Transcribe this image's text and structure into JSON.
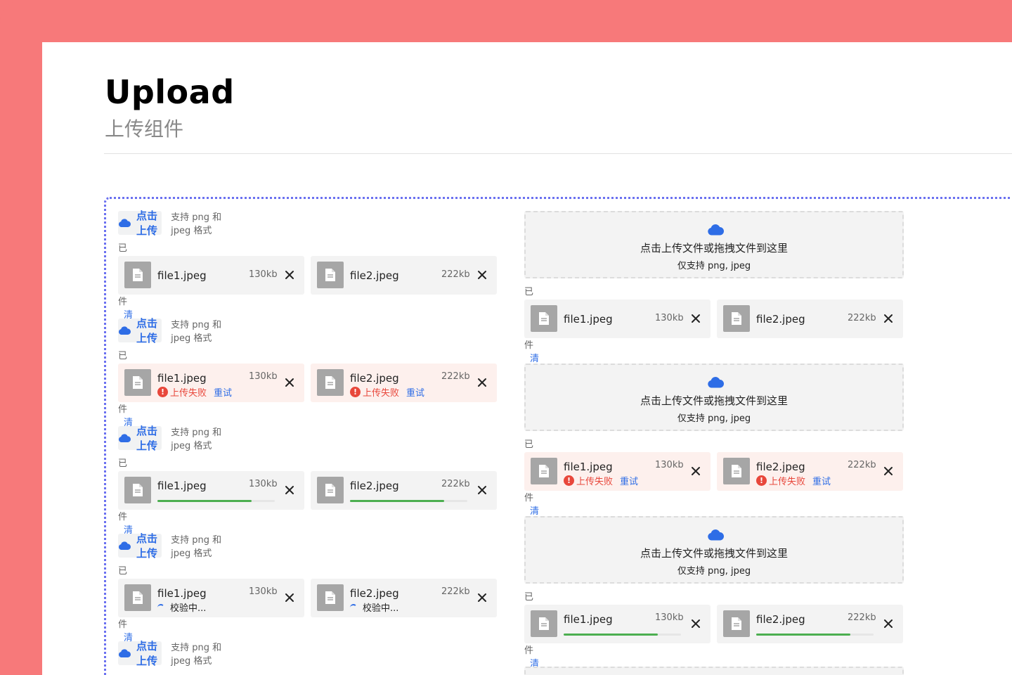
{
  "page": {
    "title": "Upload",
    "subtitle": "上传组件"
  },
  "colors": {
    "accent": "#2e6de6",
    "error": "#e8473b",
    "progress": "#4caf50",
    "frame": "#f7797a",
    "dashed_outline": "#6b71f0"
  },
  "left_blocks": [
    {
      "button": "点击上传",
      "hint": "支持 png 和 jpeg 格式",
      "selected_label": "已选择文件",
      "clear": "清空",
      "files": [
        {
          "name": "file1.jpeg",
          "size": "130kb"
        },
        {
          "name": "file2.jpeg",
          "size": "222kb"
        }
      ]
    },
    {
      "button": "点击上传",
      "hint": "支持 png 和 jpeg 格式",
      "selected_label": "已选择文件",
      "clear": "清空",
      "files": [
        {
          "name": "file1.jpeg",
          "size": "130kb",
          "status": "上传失败",
          "retry": "重试"
        },
        {
          "name": "file2.jpeg",
          "size": "222kb",
          "status": "上传失败",
          "retry": "重试"
        }
      ]
    },
    {
      "button": "点击上传",
      "hint": "支持 png 和 jpeg 格式",
      "selected_label": "已选择文件",
      "clear": "清空",
      "files": [
        {
          "name": "file1.jpeg",
          "size": "130kb",
          "progress": 0.8
        },
        {
          "name": "file2.jpeg",
          "size": "222kb",
          "progress": 0.8
        }
      ]
    },
    {
      "button": "点击上传",
      "hint": "支持 png 和 jpeg 格式",
      "selected_label": "已选择文件",
      "clear": "清空",
      "files": [
        {
          "name": "file1.jpeg",
          "size": "130kb",
          "status": "校验中..."
        },
        {
          "name": "file2.jpeg",
          "size": "222kb",
          "status": "校验中..."
        }
      ]
    },
    {
      "button": "点击上传",
      "hint": "支持 png 和 jpeg 格式"
    }
  ],
  "right_blocks": [
    {
      "drop_title": "点击上传文件或拖拽文件到这里",
      "drop_sub": "仅支持 png, jpeg",
      "selected_label": "已选择文件",
      "clear": "清空",
      "files": [
        {
          "name": "file1.jpeg",
          "size": "130kb"
        },
        {
          "name": "file2.jpeg",
          "size": "222kb"
        }
      ]
    },
    {
      "drop_title": "点击上传文件或拖拽文件到这里",
      "drop_sub": "仅支持 png, jpeg",
      "selected_label": "已选择文件",
      "clear": "清空",
      "files": [
        {
          "name": "file1.jpeg",
          "size": "130kb",
          "status": "上传失败",
          "retry": "重试"
        },
        {
          "name": "file2.jpeg",
          "size": "222kb",
          "status": "上传失败",
          "retry": "重试"
        }
      ]
    },
    {
      "drop_title": "点击上传文件或拖拽文件到这里",
      "drop_sub": "仅支持 png, jpeg",
      "selected_label": "已选择文件",
      "clear": "清空",
      "files": [
        {
          "name": "file1.jpeg",
          "size": "130kb",
          "progress": 0.8
        },
        {
          "name": "file2.jpeg",
          "size": "222kb",
          "progress": 0.8
        }
      ]
    }
  ]
}
